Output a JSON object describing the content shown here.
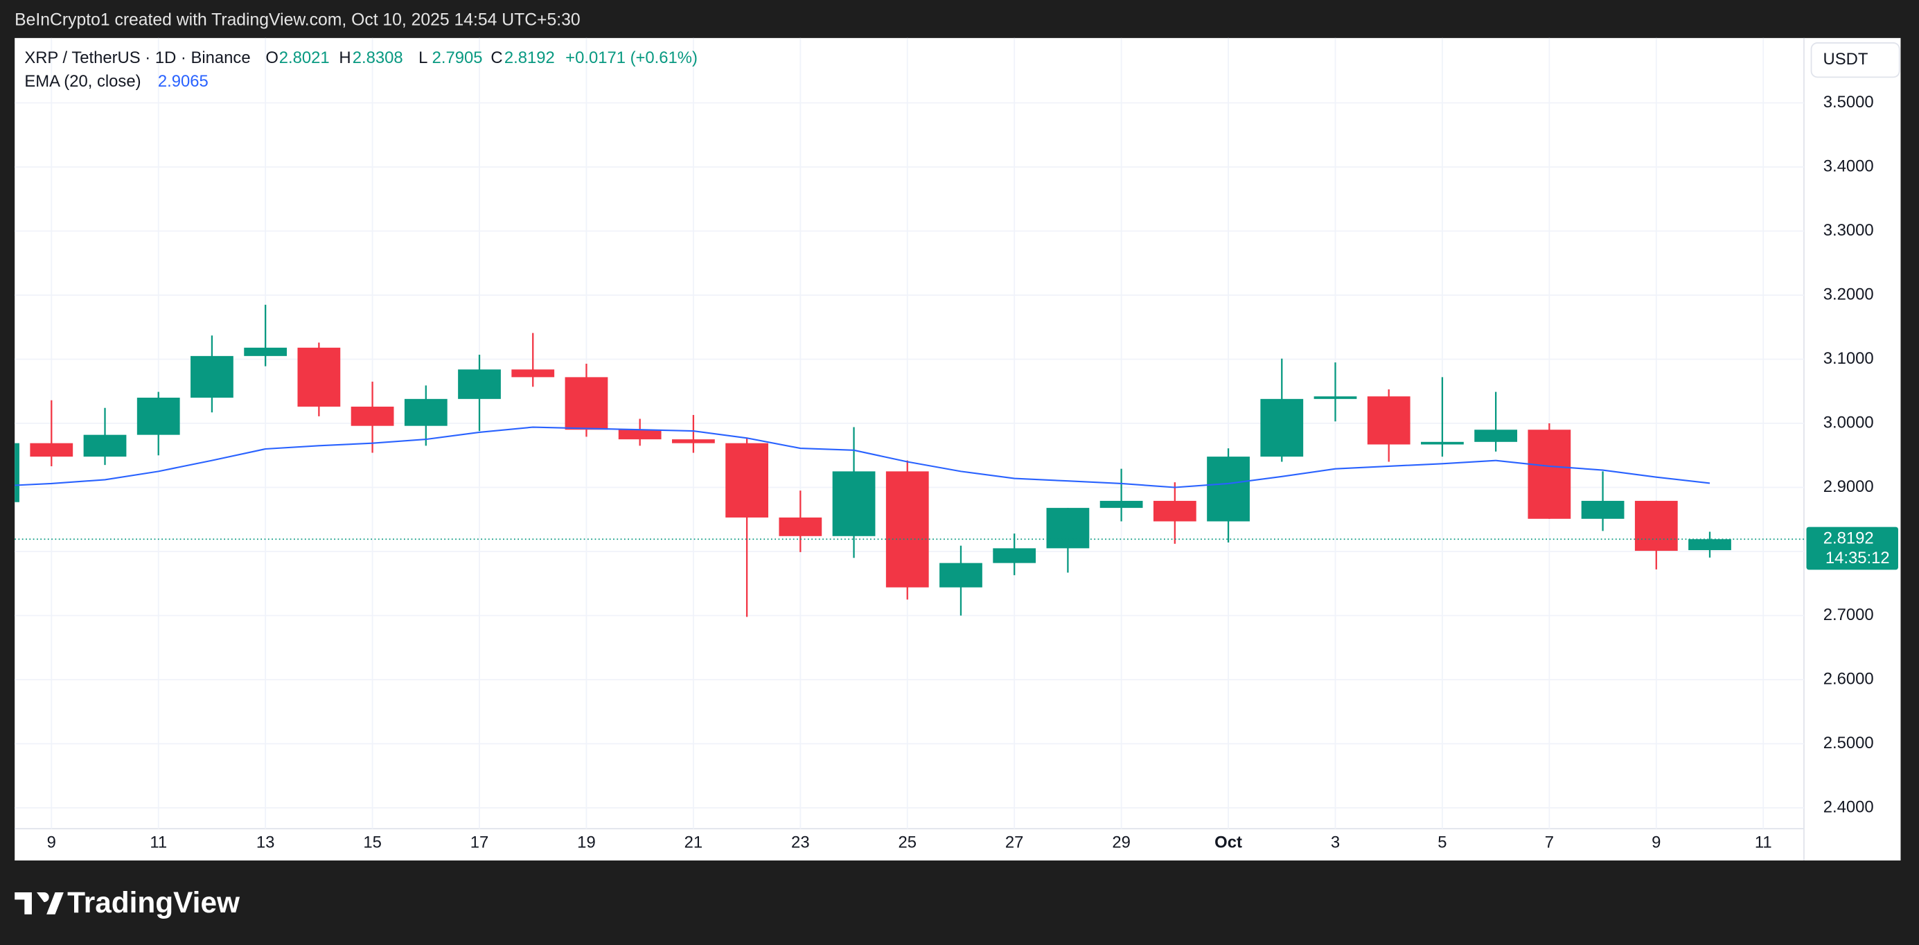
{
  "header": {
    "caption": "BeInCrypto1 created with TradingView.com, Oct 10, 2025 14:54 UTC+5:30"
  },
  "footer": {
    "brand": "TradingView"
  },
  "chart_data": {
    "type": "candlestick",
    "legend": {
      "symbol": "XRP / TetherUS · 1D · Binance",
      "keys": [
        "O",
        "H",
        "L",
        "C"
      ],
      "change": "+0.0171 (+0.61%)"
    },
    "currency": "USDT",
    "countdown": "14:35:12",
    "up_color": "#089981",
    "down_color": "#f23645",
    "x": [
      "2025-09-08",
      "2025-09-09",
      "2025-09-10",
      "2025-09-11",
      "2025-09-12",
      "2025-09-13",
      "2025-09-14",
      "2025-09-15",
      "2025-09-16",
      "2025-09-17",
      "2025-09-18",
      "2025-09-19",
      "2025-09-20",
      "2025-09-21",
      "2025-09-22",
      "2025-09-23",
      "2025-09-24",
      "2025-09-25",
      "2025-09-26",
      "2025-09-27",
      "2025-09-28",
      "2025-09-29",
      "2025-09-30",
      "2025-10-01",
      "2025-10-02",
      "2025-10-03",
      "2025-10-04",
      "2025-10-05",
      "2025-10-06",
      "2025-10-07",
      "2025-10-08",
      "2025-10-09",
      "2025-10-10"
    ],
    "open": [
      2.877,
      2.969,
      2.948,
      2.982,
      3.04,
      3.105,
      3.118,
      3.026,
      2.996,
      3.038,
      3.084,
      3.072,
      2.99,
      2.975,
      2.969,
      2.853,
      2.824,
      2.925,
      2.744,
      2.782,
      2.805,
      2.868,
      2.879,
      2.847,
      2.948,
      3.038,
      3.042,
      2.967,
      2.971,
      2.99,
      2.851,
      2.879,
      2.8021
    ],
    "high": [
      2.975,
      3.036,
      3.024,
      3.049,
      3.137,
      3.185,
      3.126,
      3.065,
      3.059,
      3.107,
      3.141,
      3.093,
      3.007,
      3.013,
      2.977,
      2.895,
      2.994,
      2.942,
      2.809,
      2.828,
      2.868,
      2.929,
      2.908,
      2.961,
      3.101,
      3.095,
      3.053,
      3.072,
      3.049,
      3.0,
      2.925,
      2.879,
      2.8308
    ],
    "low": [
      2.87,
      2.933,
      2.935,
      2.95,
      3.017,
      3.089,
      3.011,
      2.954,
      2.965,
      2.988,
      3.057,
      2.979,
      2.965,
      2.954,
      2.698,
      2.799,
      2.79,
      2.725,
      2.7,
      2.763,
      2.767,
      2.847,
      2.812,
      2.814,
      2.94,
      3.003,
      2.94,
      2.948,
      2.956,
      2.851,
      2.832,
      2.772,
      2.7905
    ],
    "close": [
      2.969,
      2.948,
      2.982,
      3.04,
      3.105,
      3.118,
      3.026,
      2.996,
      3.038,
      3.084,
      3.072,
      2.99,
      2.975,
      2.969,
      2.853,
      2.824,
      2.925,
      2.744,
      2.782,
      2.805,
      2.868,
      2.879,
      2.847,
      2.948,
      3.038,
      3.042,
      2.967,
      2.971,
      2.99,
      2.851,
      2.879,
      2.801,
      2.8192
    ],
    "ema": {
      "name": "EMA (20, close)",
      "color": "#2962ff",
      "values": [
        2.902,
        2.906,
        2.912,
        2.925,
        2.942,
        2.96,
        2.965,
        2.969,
        2.975,
        2.986,
        2.994,
        2.992,
        2.99,
        2.988,
        2.977,
        2.961,
        2.958,
        2.94,
        2.925,
        2.914,
        2.91,
        2.906,
        2.9,
        2.906,
        2.917,
        2.929,
        2.933,
        2.937,
        2.942,
        2.933,
        2.927,
        2.916,
        2.9065
      ]
    },
    "xlim": [
      "2025-09-08T07:30",
      "2025-10-11T18:15"
    ],
    "xticks": [
      {
        "value": "2025-09-09",
        "label": "9"
      },
      {
        "value": "2025-09-11",
        "label": "11"
      },
      {
        "value": "2025-09-13",
        "label": "13"
      },
      {
        "value": "2025-09-15",
        "label": "15"
      },
      {
        "value": "2025-09-17",
        "label": "17"
      },
      {
        "value": "2025-09-19",
        "label": "19"
      },
      {
        "value": "2025-09-21",
        "label": "21"
      },
      {
        "value": "2025-09-23",
        "label": "23"
      },
      {
        "value": "2025-09-25",
        "label": "25"
      },
      {
        "value": "2025-09-27",
        "label": "27"
      },
      {
        "value": "2025-09-29",
        "label": "29"
      },
      {
        "value": "2025-10-01",
        "label": "Oct"
      },
      {
        "value": "2025-10-03",
        "label": "3"
      },
      {
        "value": "2025-10-05",
        "label": "5"
      },
      {
        "value": "2025-10-07",
        "label": "7"
      },
      {
        "value": "2025-10-09",
        "label": "9"
      },
      {
        "value": "2025-10-11",
        "label": "11"
      }
    ],
    "ylim": [
      2.3675,
      3.6012
    ],
    "yticks": [
      {
        "value": 2.4,
        "label": "2.4000"
      },
      {
        "value": 2.5,
        "label": "2.5000"
      },
      {
        "value": 2.6,
        "label": "2.6000"
      },
      {
        "value": 2.7,
        "label": "2.7000"
      },
      {
        "value": 2.8,
        "label": "2.8000"
      },
      {
        "value": 2.9,
        "label": "2.9000"
      },
      {
        "value": 3.0,
        "label": "3.0000"
      },
      {
        "value": 3.1,
        "label": "3.1000"
      },
      {
        "value": 3.2,
        "label": "3.2000"
      },
      {
        "value": 3.3,
        "label": "3.3000"
      },
      {
        "value": 3.4,
        "label": "3.4000"
      },
      {
        "value": 3.5,
        "label": "3.5000"
      }
    ],
    "grid": true
  }
}
